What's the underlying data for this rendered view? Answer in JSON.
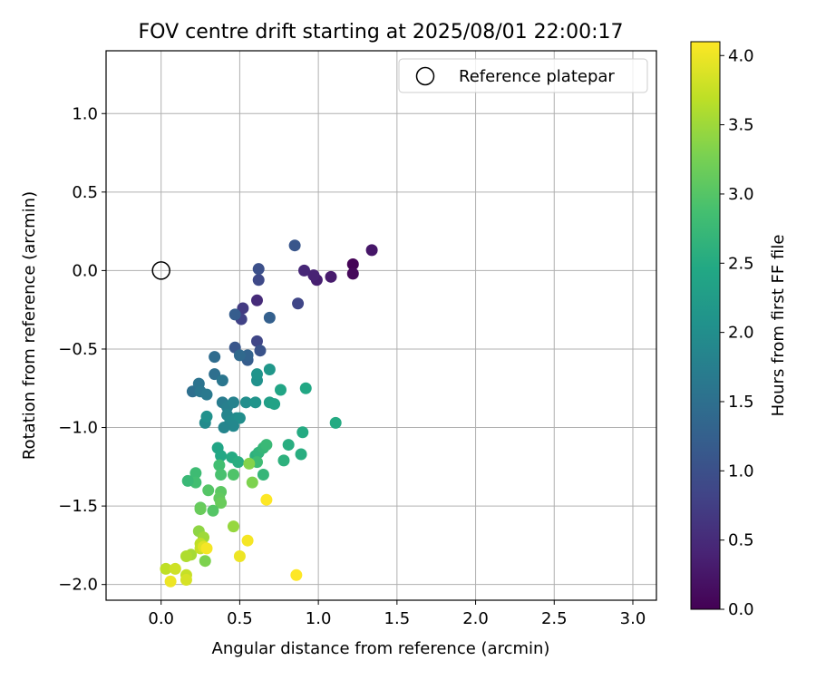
{
  "chart_data": {
    "type": "scatter",
    "title": "FOV centre drift starting at 2025/08/01 22:00:17",
    "xlabel": "Angular distance from reference (arcmin)",
    "ylabel": "Rotation from reference (arcmin)",
    "xlim": [
      -0.35,
      3.15
    ],
    "ylim": [
      -2.1,
      1.4
    ],
    "xticks": [
      0.0,
      0.5,
      1.0,
      1.5,
      2.0,
      2.5,
      3.0
    ],
    "xtick_labels": [
      "0.0",
      "0.5",
      "1.0",
      "1.5",
      "2.0",
      "2.5",
      "3.0"
    ],
    "yticks": [
      -2.0,
      -1.5,
      -1.0,
      -0.5,
      0.0,
      0.5,
      1.0
    ],
    "ytick_labels": [
      "−2.0",
      "−1.5",
      "−1.0",
      "−0.5",
      "0.0",
      "0.5",
      "1.0"
    ],
    "grid": true,
    "legend": {
      "placement": "top-right",
      "label": "Reference platepar"
    },
    "reference_point": {
      "x": 0.0,
      "y": 0.0
    },
    "colorbar": {
      "label": "Hours from first FF file",
      "colormap": "viridis",
      "range": [
        0.0,
        4.1
      ],
      "ticks": [
        0.0,
        0.5,
        1.0,
        1.5,
        2.0,
        2.5,
        3.0,
        3.5,
        4.0
      ],
      "tick_labels": [
        "0.0",
        "0.5",
        "1.0",
        "1.5",
        "2.0",
        "2.5",
        "3.0",
        "3.5",
        "4.0"
      ]
    },
    "points": [
      {
        "x": 1.22,
        "y": 0.04,
        "c": 0.02
      },
      {
        "x": 1.22,
        "y": -0.02,
        "c": 0.08
      },
      {
        "x": 1.08,
        "y": -0.04,
        "c": 0.3
      },
      {
        "x": 0.99,
        "y": -0.06,
        "c": 0.35
      },
      {
        "x": 0.97,
        "y": -0.03,
        "c": 0.4
      },
      {
        "x": 0.91,
        "y": 0.0,
        "c": 0.45
      },
      {
        "x": 1.34,
        "y": 0.13,
        "c": 0.25
      },
      {
        "x": 0.61,
        "y": -0.19,
        "c": 0.5
      },
      {
        "x": 0.52,
        "y": -0.24,
        "c": 0.7
      },
      {
        "x": 0.51,
        "y": -0.31,
        "c": 0.8
      },
      {
        "x": 0.87,
        "y": -0.21,
        "c": 0.85
      },
      {
        "x": 0.61,
        "y": -0.45,
        "c": 0.85
      },
      {
        "x": 0.62,
        "y": -0.06,
        "c": 0.9
      },
      {
        "x": 0.62,
        "y": 0.01,
        "c": 1.0
      },
      {
        "x": 0.85,
        "y": 0.16,
        "c": 1.1
      },
      {
        "x": 0.63,
        "y": -0.51,
        "c": 1.05
      },
      {
        "x": 0.47,
        "y": -0.49,
        "c": 1.1
      },
      {
        "x": 0.47,
        "y": -0.28,
        "c": 1.2
      },
      {
        "x": 0.69,
        "y": -0.3,
        "c": 1.25
      },
      {
        "x": 0.55,
        "y": -0.57,
        "c": 1.2
      },
      {
        "x": 0.55,
        "y": -0.54,
        "c": 1.3
      },
      {
        "x": 0.5,
        "y": -0.54,
        "c": 1.4
      },
      {
        "x": 0.34,
        "y": -0.55,
        "c": 1.45
      },
      {
        "x": 0.34,
        "y": -0.66,
        "c": 1.5
      },
      {
        "x": 0.2,
        "y": -0.77,
        "c": 1.5
      },
      {
        "x": 0.24,
        "y": -0.72,
        "c": 1.55
      },
      {
        "x": 0.25,
        "y": -0.77,
        "c": 1.6
      },
      {
        "x": 0.29,
        "y": -0.79,
        "c": 1.65
      },
      {
        "x": 0.39,
        "y": -0.7,
        "c": 1.6
      },
      {
        "x": 0.39,
        "y": -0.84,
        "c": 1.7
      },
      {
        "x": 0.42,
        "y": -0.87,
        "c": 1.75
      },
      {
        "x": 0.46,
        "y": -0.84,
        "c": 1.8
      },
      {
        "x": 0.42,
        "y": -0.92,
        "c": 1.85
      },
      {
        "x": 0.44,
        "y": -0.96,
        "c": 1.9
      },
      {
        "x": 0.48,
        "y": -0.94,
        "c": 1.95
      },
      {
        "x": 0.5,
        "y": -0.94,
        "c": 2.0
      },
      {
        "x": 0.46,
        "y": -0.99,
        "c": 1.9
      },
      {
        "x": 0.4,
        "y": -1.0,
        "c": 1.85
      },
      {
        "x": 0.28,
        "y": -0.97,
        "c": 1.95
      },
      {
        "x": 0.29,
        "y": -0.93,
        "c": 2.05
      },
      {
        "x": 0.54,
        "y": -0.84,
        "c": 2.0
      },
      {
        "x": 0.6,
        "y": -0.84,
        "c": 2.1
      },
      {
        "x": 0.61,
        "y": -0.7,
        "c": 2.05
      },
      {
        "x": 0.61,
        "y": -0.66,
        "c": 2.1
      },
      {
        "x": 0.69,
        "y": -0.63,
        "c": 2.15
      },
      {
        "x": 0.69,
        "y": -0.84,
        "c": 2.3
      },
      {
        "x": 0.72,
        "y": -0.85,
        "c": 2.35
      },
      {
        "x": 0.76,
        "y": -0.76,
        "c": 2.4
      },
      {
        "x": 0.92,
        "y": -0.75,
        "c": 2.45
      },
      {
        "x": 1.11,
        "y": -0.97,
        "c": 2.5
      },
      {
        "x": 0.9,
        "y": -1.03,
        "c": 2.5
      },
      {
        "x": 0.81,
        "y": -1.11,
        "c": 2.55
      },
      {
        "x": 0.89,
        "y": -1.17,
        "c": 2.55
      },
      {
        "x": 0.78,
        "y": -1.21,
        "c": 2.6
      },
      {
        "x": 0.36,
        "y": -1.13,
        "c": 2.4
      },
      {
        "x": 0.38,
        "y": -1.18,
        "c": 2.45
      },
      {
        "x": 0.45,
        "y": -1.19,
        "c": 2.5
      },
      {
        "x": 0.49,
        "y": -1.22,
        "c": 2.55
      },
      {
        "x": 0.6,
        "y": -1.18,
        "c": 2.6
      },
      {
        "x": 0.62,
        "y": -1.16,
        "c": 2.65
      },
      {
        "x": 0.65,
        "y": -1.13,
        "c": 2.7
      },
      {
        "x": 0.67,
        "y": -1.11,
        "c": 2.75
      },
      {
        "x": 0.61,
        "y": -1.22,
        "c": 2.8
      },
      {
        "x": 0.65,
        "y": -1.3,
        "c": 2.7
      },
      {
        "x": 0.37,
        "y": -1.24,
        "c": 2.85
      },
      {
        "x": 0.38,
        "y": -1.3,
        "c": 2.9
      },
      {
        "x": 0.46,
        "y": -1.3,
        "c": 2.95
      },
      {
        "x": 0.22,
        "y": -1.29,
        "c": 2.8
      },
      {
        "x": 0.22,
        "y": -1.35,
        "c": 2.85
      },
      {
        "x": 0.17,
        "y": -1.34,
        "c": 2.75
      },
      {
        "x": 0.3,
        "y": -1.4,
        "c": 3.0
      },
      {
        "x": 0.38,
        "y": -1.41,
        "c": 3.05
      },
      {
        "x": 0.37,
        "y": -1.45,
        "c": 3.1
      },
      {
        "x": 0.38,
        "y": -1.48,
        "c": 3.15
      },
      {
        "x": 0.33,
        "y": -1.53,
        "c": 3.0
      },
      {
        "x": 0.25,
        "y": -1.51,
        "c": 3.1
      },
      {
        "x": 0.25,
        "y": -1.52,
        "c": 3.15
      },
      {
        "x": 0.58,
        "y": -1.35,
        "c": 3.3
      },
      {
        "x": 0.56,
        "y": -1.23,
        "c": 3.35
      },
      {
        "x": 0.24,
        "y": -1.66,
        "c": 3.4
      },
      {
        "x": 0.27,
        "y": -1.7,
        "c": 3.5
      },
      {
        "x": 0.28,
        "y": -1.85,
        "c": 3.3
      },
      {
        "x": 0.46,
        "y": -1.63,
        "c": 3.45
      },
      {
        "x": 0.19,
        "y": -1.81,
        "c": 3.55
      },
      {
        "x": 0.16,
        "y": -1.82,
        "c": 3.6
      },
      {
        "x": 0.25,
        "y": -1.74,
        "c": 3.7
      },
      {
        "x": 0.25,
        "y": -1.77,
        "c": 3.75
      },
      {
        "x": 0.27,
        "y": -1.76,
        "c": 3.9
      },
      {
        "x": 0.29,
        "y": -1.77,
        "c": 4.05
      },
      {
        "x": 0.03,
        "y": -1.9,
        "c": 3.7
      },
      {
        "x": 0.09,
        "y": -1.9,
        "c": 3.8
      },
      {
        "x": 0.16,
        "y": -1.94,
        "c": 3.75
      },
      {
        "x": 0.16,
        "y": -1.97,
        "c": 3.85
      },
      {
        "x": 0.06,
        "y": -1.98,
        "c": 4.0
      },
      {
        "x": 0.5,
        "y": -1.82,
        "c": 4.0
      },
      {
        "x": 0.55,
        "y": -1.72,
        "c": 4.05
      },
      {
        "x": 0.67,
        "y": -1.46,
        "c": 4.1
      },
      {
        "x": 0.86,
        "y": -1.94,
        "c": 4.1
      }
    ]
  }
}
